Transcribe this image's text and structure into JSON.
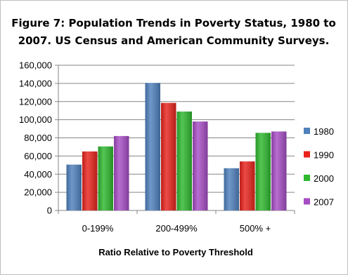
{
  "chart_data": {
    "type": "bar",
    "title_lines": [
      "Figure 7: Population Trends in Poverty Status, 1980 to",
      "2007. US Census and American Community Surveys."
    ],
    "xlabel": "Ratio Relative to Poverty Threshold",
    "ylabel": "",
    "categories": [
      "0-199%",
      "200-499%",
      "500% +"
    ],
    "ylim": [
      0,
      160000
    ],
    "yticks": [
      0,
      20000,
      40000,
      60000,
      80000,
      100000,
      120000,
      140000,
      160000
    ],
    "ytick_labels": [
      "0",
      "20,000",
      "40,000",
      "60,000",
      "80,000",
      "100,000",
      "120,000",
      "140,000",
      "160,000"
    ],
    "grid": true,
    "legend_position": "right",
    "series": [
      {
        "name": "1980",
        "color": "#4f81bd",
        "values": [
          50500,
          140500,
          46500
        ]
      },
      {
        "name": "1990",
        "color": "#e8231c",
        "values": [
          65000,
          118500,
          54000
        ]
      },
      {
        "name": "2000",
        "color": "#2eb82e",
        "values": [
          70500,
          109000,
          85500
        ]
      },
      {
        "name": "2007",
        "color": "#a64dc4",
        "values": [
          82000,
          98000,
          87000
        ]
      }
    ]
  }
}
